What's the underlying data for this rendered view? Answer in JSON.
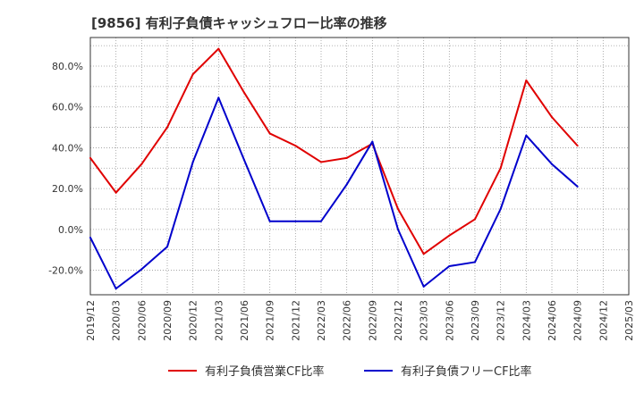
{
  "chart_data": {
    "type": "line",
    "title": "[9856]  有利子負債キャッシュフロー比率の推移",
    "x": [
      "2019/12",
      "2020/03",
      "2020/06",
      "2020/09",
      "2020/12",
      "2021/03",
      "2021/06",
      "2021/09",
      "2021/12",
      "2022/03",
      "2022/06",
      "2022/09",
      "2022/12",
      "2023/03",
      "2023/06",
      "2023/09",
      "2023/12",
      "2024/03",
      "2024/06",
      "2024/09",
      "2024/12",
      "2025/03"
    ],
    "x_tick_labels": [
      "2019/12",
      "2020/03",
      "2020/06",
      "2020/09",
      "2020/12",
      "2021/03",
      "2021/06",
      "2021/09",
      "2021/12",
      "2022/03",
      "2022/06",
      "2022/09",
      "2022/12",
      "2023/03",
      "2023/06",
      "2023/09",
      "2023/12",
      "2024/03",
      "2024/06",
      "2024/09",
      "2024/12",
      "2025/03"
    ],
    "y_tick_labels": [
      "-20.0%",
      "0.0%",
      "20.0%",
      "40.0%",
      "60.0%",
      "80.0%"
    ],
    "y_ticks": [
      -20,
      0,
      20,
      40,
      60,
      80
    ],
    "ylim": [
      -32,
      94
    ],
    "grid": true,
    "legend_position": "bottom",
    "series": [
      {
        "name": "有利子負債営業CF比率",
        "color": "#e00000",
        "values": [
          35,
          18,
          32,
          50,
          76,
          88.5,
          67,
          47,
          41,
          33,
          35,
          42,
          10,
          -12,
          -3,
          5,
          30,
          73,
          55,
          41,
          null,
          null
        ]
      },
      {
        "name": "有利子負債フリーCF比率",
        "color": "#0000cc",
        "values": [
          -4,
          -29,
          -19.5,
          -8.5,
          33,
          64.5,
          34,
          4,
          4,
          4,
          22,
          43,
          0,
          -28,
          -18,
          -16,
          10,
          46,
          32,
          21,
          null,
          null
        ]
      }
    ]
  }
}
